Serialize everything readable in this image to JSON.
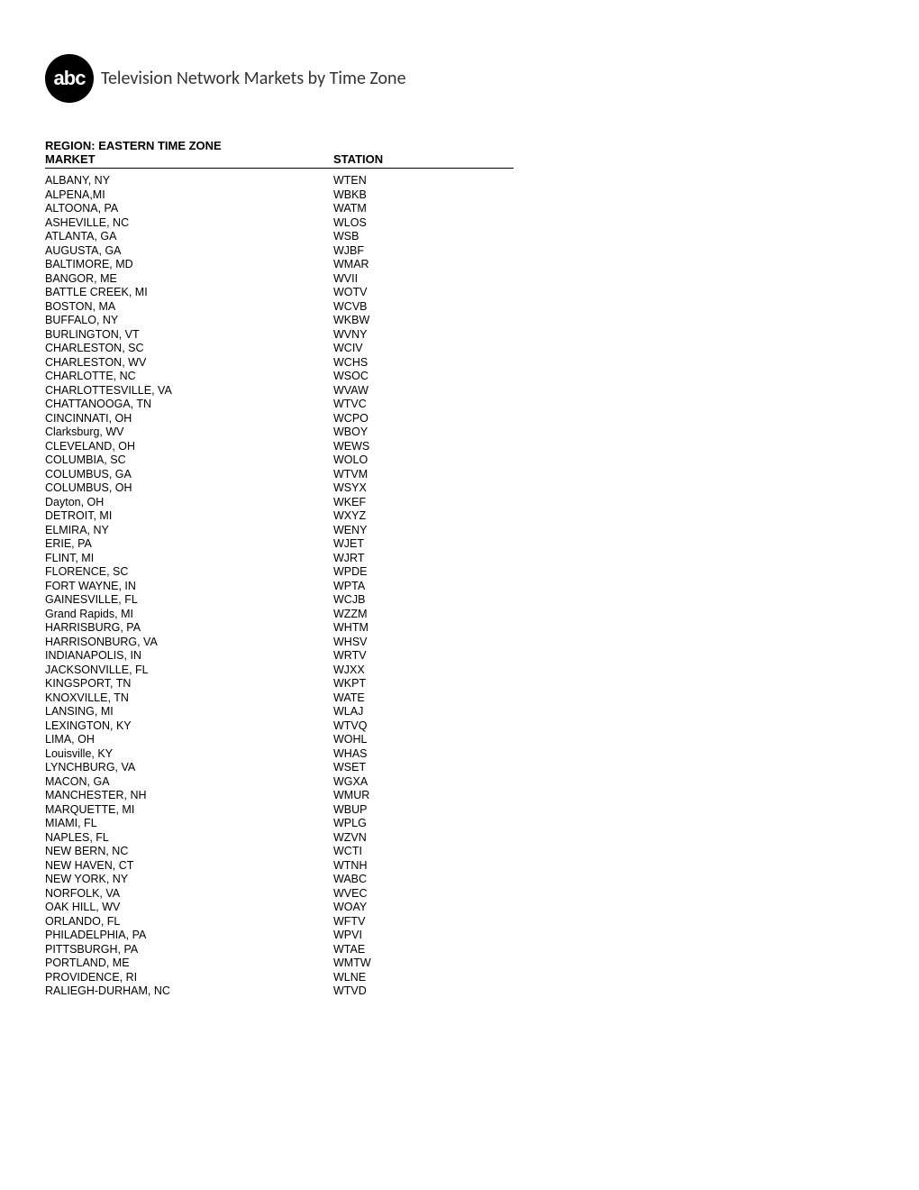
{
  "document": {
    "title": "Television Network Markets by Time Zone",
    "logo_text": "abc",
    "region_label": "REGION: EASTERN TIME ZONE",
    "columns": {
      "market": "MARKET",
      "station": "STATION"
    },
    "rows": [
      {
        "market": "ALBANY, NY",
        "station": "WTEN"
      },
      {
        "market": "ALPENA,MI",
        "station": "WBKB"
      },
      {
        "market": "ALTOONA, PA",
        "station": "WATM"
      },
      {
        "market": "ASHEVILLE, NC",
        "station": "WLOS"
      },
      {
        "market": "ATLANTA, GA",
        "station": "WSB"
      },
      {
        "market": "AUGUSTA, GA",
        "station": "WJBF"
      },
      {
        "market": "BALTIMORE, MD",
        "station": "WMAR"
      },
      {
        "market": "BANGOR, ME",
        "station": "WVII"
      },
      {
        "market": "BATTLE CREEK, MI",
        "station": "WOTV"
      },
      {
        "market": "BOSTON, MA",
        "station": "WCVB"
      },
      {
        "market": "BUFFALO, NY",
        "station": "WKBW"
      },
      {
        "market": "BURLINGTON, VT",
        "station": "WVNY"
      },
      {
        "market": "CHARLESTON, SC",
        "station": "WCIV"
      },
      {
        "market": "CHARLESTON, WV",
        "station": "WCHS"
      },
      {
        "market": "CHARLOTTE, NC",
        "station": "WSOC"
      },
      {
        "market": "CHARLOTTESVILLE, VA",
        "station": "WVAW"
      },
      {
        "market": "CHATTANOOGA, TN",
        "station": "WTVC"
      },
      {
        "market": "CINCINNATI, OH",
        "station": "WCPO"
      },
      {
        "market": "Clarksburg, WV",
        "station": "WBOY"
      },
      {
        "market": "CLEVELAND, OH",
        "station": "WEWS"
      },
      {
        "market": "COLUMBIA, SC",
        "station": "WOLO"
      },
      {
        "market": "COLUMBUS, GA",
        "station": "WTVM"
      },
      {
        "market": "COLUMBUS, OH",
        "station": "WSYX"
      },
      {
        "market": "Dayton, OH",
        "station": "WKEF"
      },
      {
        "market": "DETROIT, MI",
        "station": "WXYZ"
      },
      {
        "market": "ELMIRA, NY",
        "station": "WENY"
      },
      {
        "market": "ERIE, PA",
        "station": "WJET"
      },
      {
        "market": "FLINT, MI",
        "station": "WJRT"
      },
      {
        "market": "FLORENCE, SC",
        "station": "WPDE"
      },
      {
        "market": "FORT WAYNE, IN",
        "station": "WPTA"
      },
      {
        "market": "GAINESVILLE, FL",
        "station": "WCJB"
      },
      {
        "market": "Grand Rapids, MI",
        "station": "WZZM"
      },
      {
        "market": "HARRISBURG, PA",
        "station": "WHTM"
      },
      {
        "market": "HARRISONBURG, VA",
        "station": "WHSV"
      },
      {
        "market": "INDIANAPOLIS, IN",
        "station": "WRTV"
      },
      {
        "market": "JACKSONVILLE, FL",
        "station": "WJXX"
      },
      {
        "market": "KINGSPORT, TN",
        "station": "WKPT"
      },
      {
        "market": "KNOXVILLE, TN",
        "station": "WATE"
      },
      {
        "market": "LANSING, MI",
        "station": "WLAJ"
      },
      {
        "market": "LEXINGTON, KY",
        "station": "WTVQ"
      },
      {
        "market": "LIMA, OH",
        "station": "WOHL"
      },
      {
        "market": "Louisville, KY",
        "station": "WHAS"
      },
      {
        "market": "LYNCHBURG, VA",
        "station": "WSET"
      },
      {
        "market": "MACON, GA",
        "station": "WGXA"
      },
      {
        "market": "MANCHESTER, NH",
        "station": "WMUR"
      },
      {
        "market": "MARQUETTE, MI",
        "station": "WBUP"
      },
      {
        "market": "MIAMI, FL",
        "station": "WPLG"
      },
      {
        "market": "NAPLES, FL",
        "station": "WZVN"
      },
      {
        "market": "NEW BERN, NC",
        "station": "WCTI"
      },
      {
        "market": "NEW HAVEN, CT",
        "station": "WTNH"
      },
      {
        "market": "NEW YORK, NY",
        "station": "WABC"
      },
      {
        "market": "NORFOLK, VA",
        "station": "WVEC"
      },
      {
        "market": "OAK HILL, WV",
        "station": "WOAY"
      },
      {
        "market": "ORLANDO, FL",
        "station": "WFTV"
      },
      {
        "market": "PHILADELPHIA, PA",
        "station": "WPVI"
      },
      {
        "market": "PITTSBURGH, PA",
        "station": "WTAE"
      },
      {
        "market": "PORTLAND, ME",
        "station": "WMTW"
      },
      {
        "market": "PROVIDENCE, RI",
        "station": "WLNE"
      },
      {
        "market": "RALIEGH-DURHAM, NC",
        "station": "WTVD"
      }
    ]
  }
}
